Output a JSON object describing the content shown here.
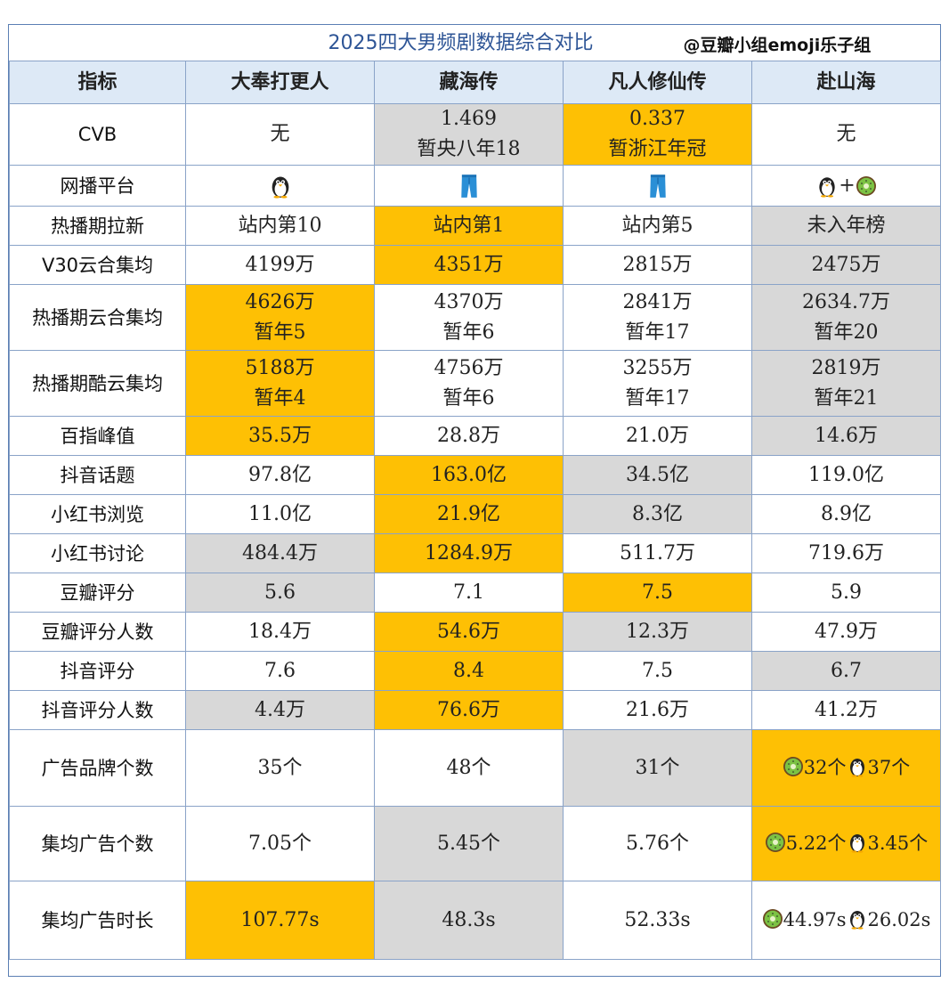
{
  "title": "2025四大男频剧数据综合对比",
  "source": "@豆瓣小组emoji乐子组",
  "headers": [
    "指标",
    "大奉打更人",
    "藏海传",
    "凡人修仙传",
    "赴山海"
  ],
  "rows": [
    {
      "label": "CVB",
      "cells": [
        {
          "l1": "无",
          "l2": "",
          "hl": ""
        },
        {
          "l1": "1.469",
          "l2": "暂央八年18",
          "hl": "gray"
        },
        {
          "l1": "0.337",
          "l2": "暂浙江年冠",
          "hl": "yellow"
        },
        {
          "l1": "无",
          "l2": "",
          "hl": ""
        }
      ]
    },
    {
      "label": "网播平台",
      "cells": [
        {
          "icon": "penguin-icon",
          "hl": ""
        },
        {
          "icon": "jeans-icon",
          "hl": ""
        },
        {
          "icon": "jeans-icon",
          "hl": ""
        },
        {
          "icon": "penguin-plus-kiwi",
          "plus": "+",
          "hl": ""
        }
      ]
    },
    {
      "label": "热播期拉新",
      "cells": [
        {
          "l1": "站内第10",
          "hl": ""
        },
        {
          "l1": "站内第1",
          "hl": "yellow"
        },
        {
          "l1": "站内第5",
          "hl": ""
        },
        {
          "l1": "未入年榜",
          "hl": "gray"
        }
      ]
    },
    {
      "label": "V30云合集均",
      "cells": [
        {
          "l1": "4199万",
          "hl": ""
        },
        {
          "l1": "4351万",
          "hl": "yellow"
        },
        {
          "l1": "2815万",
          "hl": ""
        },
        {
          "l1": "2475万",
          "hl": "gray"
        }
      ]
    },
    {
      "label": "热播期云合集均",
      "cells": [
        {
          "l1": "4626万",
          "l2": "暂年5",
          "hl": "yellow"
        },
        {
          "l1": "4370万",
          "l2": "暂年6",
          "hl": ""
        },
        {
          "l1": "2841万",
          "l2": "暂年17",
          "hl": ""
        },
        {
          "l1": "2634.7万",
          "l2": "暂年20",
          "hl": "gray"
        }
      ]
    },
    {
      "label": "热播期酷云集均",
      "cells": [
        {
          "l1": "5188万",
          "l2": "暂年4",
          "hl": "yellow"
        },
        {
          "l1": "4756万",
          "l2": "暂年6",
          "hl": ""
        },
        {
          "l1": "3255万",
          "l2": "暂年17",
          "hl": ""
        },
        {
          "l1": "2819万",
          "l2": "暂年21",
          "hl": "gray"
        }
      ]
    },
    {
      "label": "百指峰值",
      "cells": [
        {
          "l1": "35.5万",
          "hl": "yellow"
        },
        {
          "l1": "28.8万",
          "hl": ""
        },
        {
          "l1": "21.0万",
          "hl": ""
        },
        {
          "l1": "14.6万",
          "hl": "gray"
        }
      ]
    },
    {
      "label": "抖音话题",
      "cells": [
        {
          "l1": "97.8亿",
          "hl": ""
        },
        {
          "l1": "163.0亿",
          "hl": "yellow"
        },
        {
          "l1": "34.5亿",
          "hl": "gray"
        },
        {
          "l1": "119.0亿",
          "hl": ""
        }
      ]
    },
    {
      "label": "小红书浏览",
      "cells": [
        {
          "l1": "11.0亿",
          "hl": ""
        },
        {
          "l1": "21.9亿",
          "hl": "yellow"
        },
        {
          "l1": "8.3亿",
          "hl": "gray"
        },
        {
          "l1": "8.9亿",
          "hl": ""
        }
      ]
    },
    {
      "label": "小红书讨论",
      "cells": [
        {
          "l1": "484.4万",
          "hl": "gray"
        },
        {
          "l1": "1284.9万",
          "hl": "yellow"
        },
        {
          "l1": "511.7万",
          "hl": ""
        },
        {
          "l1": "719.6万",
          "hl": ""
        }
      ]
    },
    {
      "label": "豆瓣评分",
      "cells": [
        {
          "l1": "5.6",
          "hl": "gray"
        },
        {
          "l1": "7.1",
          "hl": ""
        },
        {
          "l1": "7.5",
          "hl": "yellow"
        },
        {
          "l1": "5.9",
          "hl": ""
        }
      ]
    },
    {
      "label": "豆瓣评分人数",
      "cells": [
        {
          "l1": "18.4万",
          "hl": ""
        },
        {
          "l1": "54.6万",
          "hl": "yellow"
        },
        {
          "l1": "12.3万",
          "hl": "gray"
        },
        {
          "l1": "47.9万",
          "hl": ""
        }
      ]
    },
    {
      "label": "抖音评分",
      "cells": [
        {
          "l1": "7.6",
          "hl": ""
        },
        {
          "l1": "8.4",
          "hl": "yellow"
        },
        {
          "l1": "7.5",
          "hl": ""
        },
        {
          "l1": "6.7",
          "hl": "gray"
        }
      ]
    },
    {
      "label": "抖音评分人数",
      "cells": [
        {
          "l1": "4.4万",
          "hl": "gray"
        },
        {
          "l1": "76.6万",
          "hl": "yellow"
        },
        {
          "l1": "21.6万",
          "hl": ""
        },
        {
          "l1": "41.2万",
          "hl": ""
        }
      ]
    },
    {
      "label": "广告品牌个数",
      "cells": [
        {
          "l1": "35个",
          "hl": ""
        },
        {
          "l1": "48个",
          "hl": ""
        },
        {
          "l1": "31个",
          "hl": "gray"
        },
        {
          "split": [
            "32个",
            "37个"
          ],
          "hl": "yellow"
        }
      ]
    },
    {
      "label": "集均广告个数",
      "cells": [
        {
          "l1": "7.05个",
          "hl": ""
        },
        {
          "l1": "5.45个",
          "hl": "gray"
        },
        {
          "l1": "5.76个",
          "hl": ""
        },
        {
          "split": [
            "5.22个",
            "3.45个"
          ],
          "hl": "yellow"
        }
      ]
    },
    {
      "label": "集均广告时长",
      "cells": [
        {
          "l1": "107.77s",
          "hl": "yellow"
        },
        {
          "l1": "48.3s",
          "hl": "gray"
        },
        {
          "l1": "52.33s",
          "hl": ""
        },
        {
          "split": [
            "44.97s",
            "26.02s"
          ],
          "hl": ""
        }
      ]
    }
  ],
  "colors": {
    "highlight_yellow": "#fec004",
    "highlight_gray": "#d8d8d8",
    "header_bg": "#dde9f6",
    "title_color": "#2e5596",
    "border": "#8aa3c8"
  }
}
